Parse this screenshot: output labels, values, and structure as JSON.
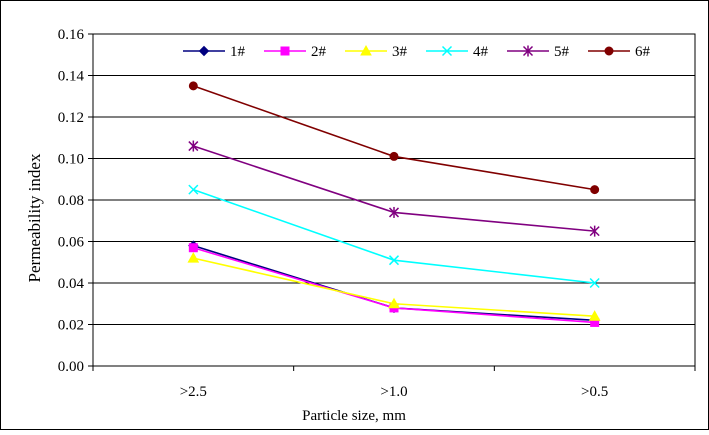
{
  "chart_data": {
    "type": "line",
    "categories": [
      ">2.5",
      ">1.0",
      ">0.5"
    ],
    "xlabel": "Particle size, mm",
    "ylabel": "Permeability index",
    "ylim": [
      0,
      0.16
    ],
    "yticks": [
      "0.00",
      "0.02",
      "0.04",
      "0.06",
      "0.08",
      "0.10",
      "0.12",
      "0.14",
      "0.16"
    ],
    "grid": "horizontal",
    "legend_position": "top",
    "series": [
      {
        "name": "1#",
        "color": "#000080",
        "marker": "diamond",
        "values": [
          0.058,
          0.028,
          0.022
        ]
      },
      {
        "name": "2#",
        "color": "#FF00FF",
        "marker": "square",
        "values": [
          0.057,
          0.028,
          0.021
        ]
      },
      {
        "name": "3#",
        "color": "#FFFF00",
        "marker": "triangle",
        "values": [
          0.052,
          0.03,
          0.024
        ]
      },
      {
        "name": "4#",
        "color": "#00FFFF",
        "marker": "x",
        "values": [
          0.085,
          0.051,
          0.04
        ]
      },
      {
        "name": "5#",
        "color": "#800080",
        "marker": "star",
        "values": [
          0.106,
          0.074,
          0.065
        ]
      },
      {
        "name": "6#",
        "color": "#800000",
        "marker": "circle",
        "values": [
          0.135,
          0.101,
          0.085
        ]
      }
    ]
  }
}
